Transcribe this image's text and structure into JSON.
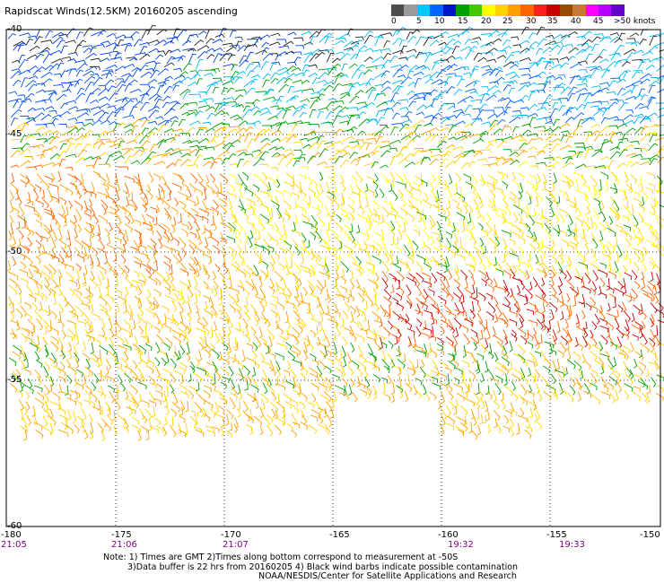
{
  "title": "Rapidscat Winds(12.5KM) 20160205 ascending",
  "legend": {
    "labels": [
      "0",
      "5",
      "10",
      "15",
      "20",
      "25",
      "30",
      "35",
      "40",
      "45",
      ">50 knots"
    ],
    "colors": [
      "#4d4d4d",
      "#9a9a9a",
      "#00c8ff",
      "#0064ff",
      "#0014c8",
      "#00a000",
      "#46c800",
      "#ffff00",
      "#ffd200",
      "#ffa000",
      "#ff6400",
      "#ff1e1e",
      "#c80000",
      "#964b00",
      "#c87832",
      "#ff00ff",
      "#b400ff",
      "#6400c8"
    ]
  },
  "lon_labels": [
    "-180",
    "-175",
    "-170",
    "-165",
    "-160",
    "-155",
    "-150"
  ],
  "lat_labels": [
    "-40",
    "-45",
    "-50",
    "-55",
    "-60"
  ],
  "times": [
    "21:05",
    "21:06",
    "21:07",
    "19:32",
    "19:33"
  ],
  "notes": {
    "line1": "Note: 1) Times are GMT 2)Times along bottom correspond to measurement at -50S",
    "line2": "3)Data buffer is 22 hrs from 20160205 4) Black wind barbs indicate possible contamination",
    "line3": "NOAA/NESDIS/Center for Satellite Applications and Research"
  }
}
